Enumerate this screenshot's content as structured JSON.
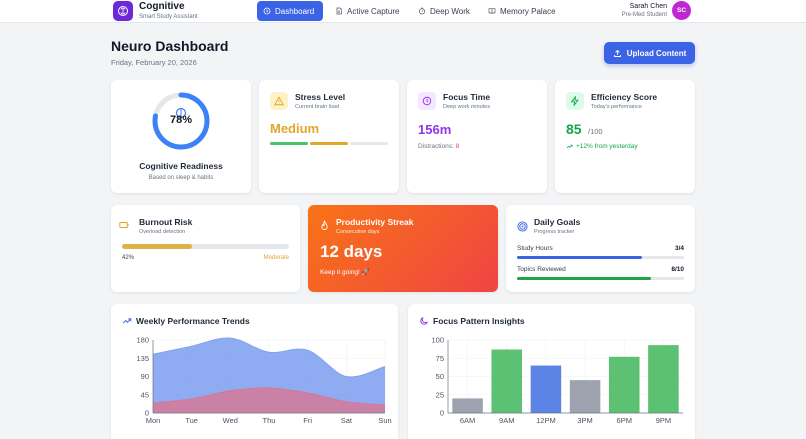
{
  "app": {
    "name": "Cognitive",
    "tagline": "Smart Study Assistant"
  },
  "nav": [
    {
      "label": "Dashboard",
      "icon": "home-icon",
      "active": true
    },
    {
      "label": "Active Capture",
      "icon": "document-icon",
      "active": false
    },
    {
      "label": "Deep Work",
      "icon": "timer-icon",
      "active": false
    },
    {
      "label": "Memory Palace",
      "icon": "book-icon",
      "active": false
    }
  ],
  "user": {
    "name": "Sarah Chen",
    "role": "Pre-Med Student",
    "initials": "SC"
  },
  "header": {
    "title": "Neuro Dashboard",
    "date": "Friday, February 20, 2026",
    "upload_label": "Upload Content"
  },
  "readiness": {
    "value": 78,
    "value_label": "78%",
    "label": "Cognitive Readiness",
    "sub": "Based on sleep & habits"
  },
  "stress": {
    "title": "Stress Level",
    "sub": "Current brain load",
    "value": "Medium",
    "segments": [
      "#4cc168",
      "#e0a72b",
      "#e5e7eb"
    ]
  },
  "focus": {
    "title": "Focus Time",
    "sub": "Deep work minutes",
    "value": "156m",
    "distractions_label": "Distractions:",
    "distractions": "8"
  },
  "efficiency": {
    "title": "Efficiency Score",
    "sub": "Today's performance",
    "value": "85",
    "max": "/100",
    "change": "+12% from yesterday"
  },
  "burnout": {
    "title": "Burnout Risk",
    "sub": "Overload detection",
    "percent_label": "42%",
    "percent": 42,
    "level": "Moderate"
  },
  "streak": {
    "title": "Productivity Streak",
    "sub": "Consecutive days",
    "value": "12 days",
    "message": "Keep it going! 🚀"
  },
  "goals": {
    "title": "Daily Goals",
    "sub": "Progress tracker",
    "items": [
      {
        "label": "Study Hours",
        "value": "3/4",
        "fraction": 0.75,
        "color": "#3b63e6"
      },
      {
        "label": "Topics Reviewed",
        "value": "8/10",
        "fraction": 0.8,
        "color": "#22a348"
      }
    ]
  },
  "weekly": {
    "title": "Weekly Performance Trends"
  },
  "focus_insights": {
    "title": "Focus Pattern Insights"
  },
  "colors": {
    "accent": "#3b63e6",
    "brand": "#6d28d9",
    "avatar": "#c026d3"
  },
  "chart_data": [
    {
      "type": "area",
      "title": "Weekly Performance Trends",
      "categories": [
        "Mon",
        "Tue",
        "Wed",
        "Thu",
        "Fri",
        "Sat",
        "Sun"
      ],
      "y_ticks": [
        0,
        45,
        90,
        135,
        180
      ],
      "ylim": [
        0,
        180
      ],
      "series": [
        {
          "values": [
            145,
            165,
            185,
            150,
            155,
            90,
            115
          ],
          "color": "#7b9ef0"
        },
        {
          "values": [
            25,
            35,
            55,
            62,
            50,
            28,
            20
          ],
          "color": "#d97592"
        }
      ]
    },
    {
      "type": "bar",
      "title": "Focus Pattern Insights",
      "categories": [
        "6AM",
        "9AM",
        "12PM",
        "3PM",
        "6PM",
        "9PM"
      ],
      "values": [
        20,
        87,
        65,
        45,
        77,
        93
      ],
      "colors": [
        "#9ca3af",
        "#5cc172",
        "#5b84e6",
        "#9ca3af",
        "#5cc172",
        "#5cc172"
      ],
      "y_ticks": [
        0,
        25,
        50,
        75,
        100
      ],
      "ylim": [
        0,
        100
      ]
    }
  ]
}
